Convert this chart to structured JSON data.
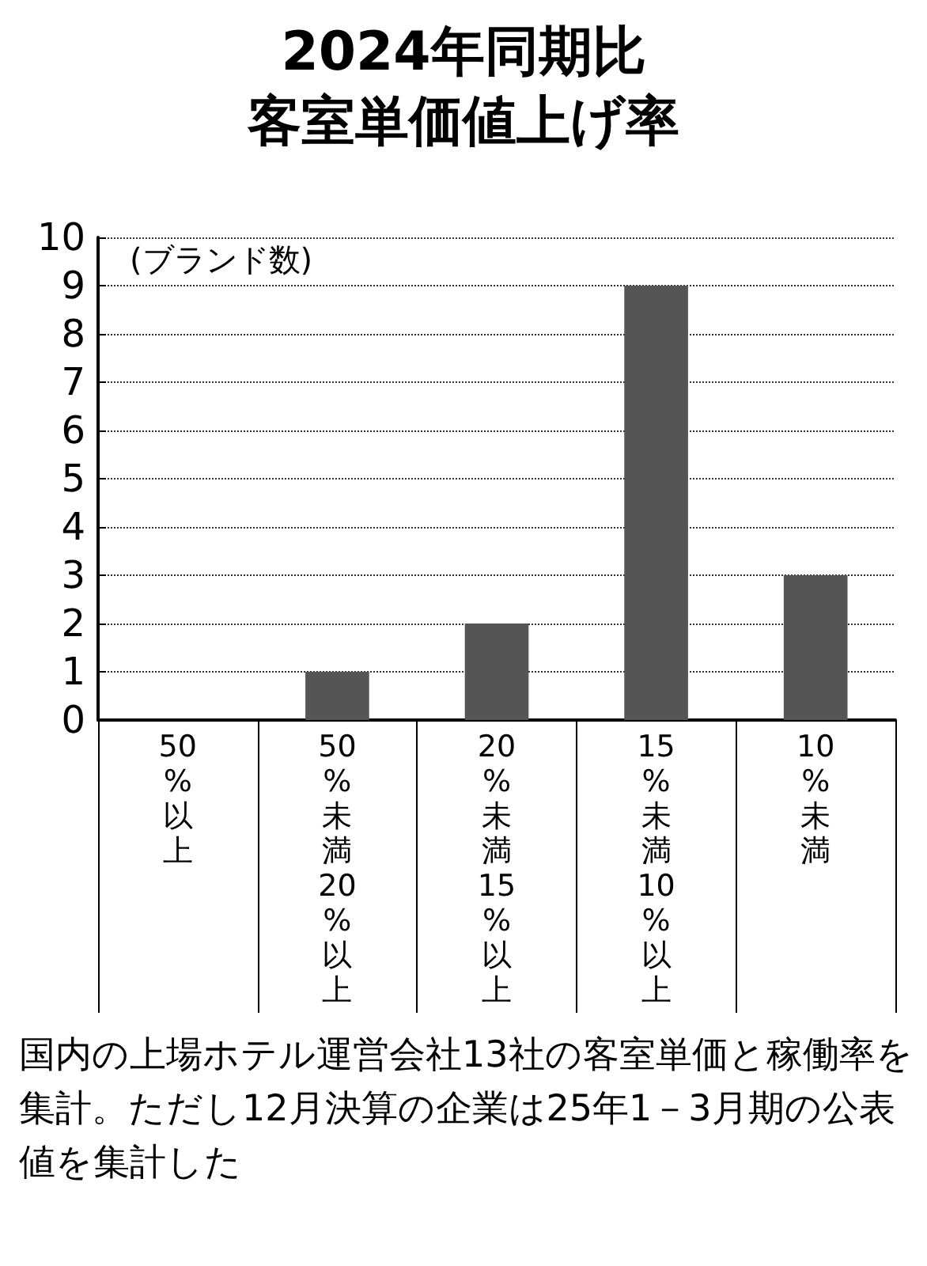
{
  "chart_data": {
    "type": "bar",
    "title": "2024年同期比",
    "subtitle": "客室単価値上げ率",
    "ylabel": "(ブランド数)",
    "categories": [
      "50%以上",
      "50%未満20%以上",
      "20%未満15%以上",
      "15%未満10%以上",
      "10%未満"
    ],
    "values": [
      0,
      1,
      2,
      9,
      3
    ],
    "color": "#555555",
    "ylim": [
      0,
      10
    ],
    "yticks": [
      0,
      1,
      2,
      3,
      4,
      5,
      6,
      7,
      8,
      9,
      10
    ],
    "grid": "y",
    "annotations": [
      "国内の上場ホテル運営会社13社の客室単価と稼働率を集計。ただし12月決算の企業は25年1－3月期の公表値を集計した"
    ]
  }
}
